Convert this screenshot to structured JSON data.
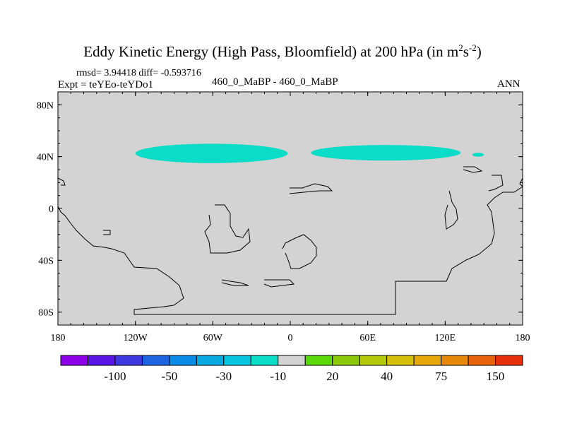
{
  "page": {
    "title_main": "Eddy Kinetic Energy (High Pass, Bloomfield) at 200 hPa (in m",
    "title_sup1": "2",
    "title_s": "s",
    "title_sup2": "-2",
    "title_end": ")",
    "stats": "rmsd= 3.94418 diff= -0.593716",
    "expt": "Expt = teYEo-teYDo1",
    "center_label": "460_0_MaBP - 460_0_MaBP",
    "season": "ANN"
  },
  "chart_data": {
    "type": "heatmap",
    "title": "Eddy Kinetic Energy (High Pass, Bloomfield) at 200 hPa (in m^2 s^-2)",
    "x_axis": {
      "range": [
        -180,
        180
      ],
      "ticks": [
        -180,
        -120,
        -60,
        0,
        60,
        120,
        180
      ],
      "tick_labels": [
        "180",
        "120W",
        "60W",
        "0",
        "60E",
        "120E",
        "180"
      ]
    },
    "y_axis": {
      "range": [
        -90,
        90
      ],
      "ticks": [
        -80,
        -40,
        0,
        40,
        80
      ],
      "tick_labels": [
        "80S",
        "40S",
        "0",
        "40N",
        "80N"
      ]
    },
    "background_color": "#d3d3d3",
    "colorbar": {
      "colors": [
        "#8b00e6",
        "#5a16e6",
        "#3d37e0",
        "#1e64e0",
        "#0a8ce6",
        "#08a8e0",
        "#08c4e0",
        "#0adcc8",
        "#d3d3d3",
        "#5ad80a",
        "#8cc80a",
        "#b4c80a",
        "#d4c00a",
        "#e6a80a",
        "#e6880a",
        "#e6620a",
        "#e6300a"
      ],
      "labels": [
        "-100",
        "-50",
        "-30",
        "-10",
        "20",
        "40",
        "75",
        "150"
      ]
    },
    "features": [
      {
        "name": "negative anomaly band",
        "value_bin": "-10",
        "color": "#0adcc8",
        "lon_range": [
          -120,
          -2
        ],
        "lat_range": [
          35,
          50
        ]
      },
      {
        "name": "negative anomaly band",
        "value_bin": "-10",
        "color": "#0adcc8",
        "lon_range": [
          16,
          132
        ],
        "lat_range": [
          37,
          49
        ]
      },
      {
        "name": "negative anomaly spot",
        "value_bin": "-10",
        "color": "#0adcc8",
        "lon_range": [
          141,
          150
        ],
        "lat_range": [
          40,
          43
        ]
      }
    ]
  }
}
